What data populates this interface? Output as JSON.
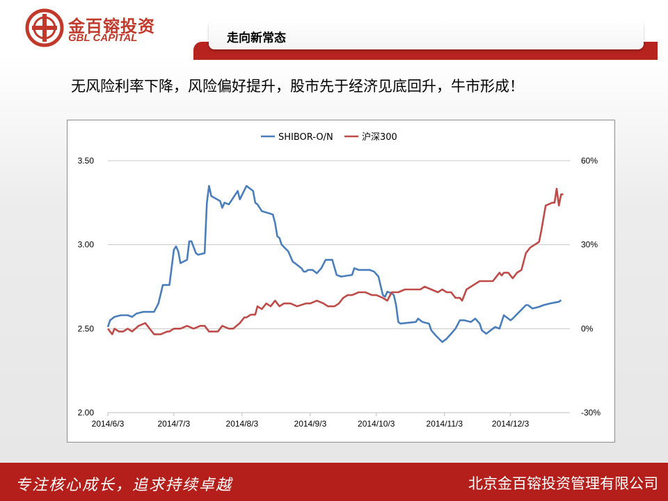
{
  "header": {
    "logo_cn": "金百镕投资",
    "logo_en": "GBL CAPITAL",
    "section_title": "走向新常态"
  },
  "headline": "无风险利率下降，风险偏好提升，股市先于经济见底回升，牛市形成！",
  "footer": {
    "slogan": "专注核心成长，追求持续卓越",
    "company": "北京金百镕投资管理有限公司"
  },
  "colors": {
    "brand_red": "#b51f1b",
    "series_blue": "#4a7ebb",
    "series_red": "#be4b48"
  },
  "chart_data": {
    "type": "line",
    "title": "",
    "legend_position": "top-center",
    "grid": "horizontal",
    "x_ticks": [
      "2014/6/3",
      "2014/7/3",
      "2014/8/3",
      "2014/9/3",
      "2014/10/3",
      "2014/11/3",
      "2014/12/3"
    ],
    "x_range": [
      "2014-06-03",
      "2014-12-30"
    ],
    "y_left": {
      "ylim": [
        2.0,
        3.5
      ],
      "ticks": [
        "3.50",
        "3.00",
        "2.50",
        "2.00"
      ],
      "tick_values": [
        3.5,
        3.0,
        2.5,
        2.0
      ]
    },
    "y_right": {
      "ylim": [
        -0.3,
        0.6
      ],
      "ticks": [
        "60%",
        "30%",
        "0%",
        "-30%"
      ],
      "tick_values": [
        0.6,
        0.3,
        0.0,
        -0.3
      ]
    },
    "series": [
      {
        "name": "SHIBOR-O/N",
        "axis": "left",
        "color": "#4a7ebb",
        "points": [
          [
            "2014-06-03",
            2.51
          ],
          [
            "2014-06-04",
            2.55
          ],
          [
            "2014-06-06",
            2.57
          ],
          [
            "2014-06-09",
            2.58
          ],
          [
            "2014-06-12",
            2.58
          ],
          [
            "2014-06-14",
            2.57
          ],
          [
            "2014-06-16",
            2.59
          ],
          [
            "2014-06-19",
            2.6
          ],
          [
            "2014-06-24",
            2.6
          ],
          [
            "2014-06-26",
            2.65
          ],
          [
            "2014-06-28",
            2.76
          ],
          [
            "2014-07-01",
            2.76
          ],
          [
            "2014-07-03",
            2.97
          ],
          [
            "2014-07-04",
            2.99
          ],
          [
            "2014-07-05",
            2.96
          ],
          [
            "2014-07-06",
            2.89
          ],
          [
            "2014-07-09",
            2.91
          ],
          [
            "2014-07-10",
            3.02
          ],
          [
            "2014-07-11",
            3.02
          ],
          [
            "2014-07-13",
            2.95
          ],
          [
            "2014-07-14",
            2.94
          ],
          [
            "2014-07-17",
            2.95
          ],
          [
            "2014-07-18",
            3.25
          ],
          [
            "2014-07-19",
            3.35
          ],
          [
            "2014-07-20",
            3.29
          ],
          [
            "2014-07-24",
            3.26
          ],
          [
            "2014-07-25",
            3.22
          ],
          [
            "2014-07-26",
            3.25
          ],
          [
            "2014-07-28",
            3.24
          ],
          [
            "2014-07-29",
            3.26
          ],
          [
            "2014-08-01",
            3.32
          ],
          [
            "2014-08-02",
            3.27
          ],
          [
            "2014-08-05",
            3.35
          ],
          [
            "2014-08-08",
            3.32
          ],
          [
            "2014-08-09",
            3.25
          ],
          [
            "2014-08-10",
            3.24
          ],
          [
            "2014-08-12",
            3.2
          ],
          [
            "2014-08-17",
            3.18
          ],
          [
            "2014-08-18",
            3.13
          ],
          [
            "2014-08-19",
            3.05
          ],
          [
            "2014-08-20",
            3.04
          ],
          [
            "2014-08-21",
            3.0
          ],
          [
            "2014-08-24",
            2.96
          ],
          [
            "2014-08-26",
            2.9
          ],
          [
            "2014-08-27",
            2.89
          ],
          [
            "2014-08-30",
            2.86
          ],
          [
            "2014-08-31",
            2.84
          ],
          [
            "2014-09-01",
            2.84
          ],
          [
            "2014-09-02",
            2.85
          ],
          [
            "2014-09-04",
            2.85
          ],
          [
            "2014-09-06",
            2.83
          ],
          [
            "2014-09-08",
            2.86
          ],
          [
            "2014-09-10",
            2.91
          ],
          [
            "2014-09-13",
            2.91
          ],
          [
            "2014-09-15",
            2.82
          ],
          [
            "2014-09-17",
            2.81
          ],
          [
            "2014-09-22",
            2.82
          ],
          [
            "2014-09-23",
            2.86
          ],
          [
            "2014-09-25",
            2.85
          ],
          [
            "2014-09-30",
            2.85
          ],
          [
            "2014-10-02",
            2.84
          ],
          [
            "2014-10-04",
            2.81
          ],
          [
            "2014-10-06",
            2.7
          ],
          [
            "2014-10-07",
            2.69
          ],
          [
            "2014-10-08",
            2.72
          ],
          [
            "2014-10-10",
            2.71
          ],
          [
            "2014-10-11",
            2.7
          ],
          [
            "2014-10-12",
            2.64
          ],
          [
            "2014-10-13",
            2.54
          ],
          [
            "2014-10-14",
            2.53
          ],
          [
            "2014-10-21",
            2.54
          ],
          [
            "2014-10-22",
            2.56
          ],
          [
            "2014-10-24",
            2.54
          ],
          [
            "2014-10-27",
            2.53
          ],
          [
            "2014-10-28",
            2.49
          ],
          [
            "2014-10-30",
            2.46
          ],
          [
            "2014-11-02",
            2.42
          ],
          [
            "2014-11-04",
            2.44
          ],
          [
            "2014-11-06",
            2.47
          ],
          [
            "2014-11-08",
            2.5
          ],
          [
            "2014-11-10",
            2.55
          ],
          [
            "2014-11-12",
            2.55
          ],
          [
            "2014-11-15",
            2.54
          ],
          [
            "2014-11-17",
            2.56
          ],
          [
            "2014-11-19",
            2.53
          ],
          [
            "2014-11-20",
            2.49
          ],
          [
            "2014-11-22",
            2.47
          ],
          [
            "2014-11-25",
            2.5
          ],
          [
            "2014-11-26",
            2.51
          ],
          [
            "2014-11-28",
            2.5
          ],
          [
            "2014-11-30",
            2.58
          ],
          [
            "2014-12-02",
            2.56
          ],
          [
            "2014-12-03",
            2.55
          ],
          [
            "2014-12-04",
            2.56
          ],
          [
            "2014-12-07",
            2.6
          ],
          [
            "2014-12-10",
            2.64
          ],
          [
            "2014-12-11",
            2.64
          ],
          [
            "2014-12-13",
            2.62
          ],
          [
            "2014-12-16",
            2.63
          ],
          [
            "2014-12-18",
            2.64
          ],
          [
            "2014-12-21",
            2.65
          ],
          [
            "2014-12-25",
            2.66
          ],
          [
            "2014-12-26",
            2.67
          ]
        ]
      },
      {
        "name": "沪深300",
        "axis": "right",
        "color": "#be4b48",
        "points": [
          [
            "2014-06-03",
            0.0
          ],
          [
            "2014-06-04",
            -0.01
          ],
          [
            "2014-06-05",
            -0.02
          ],
          [
            "2014-06-06",
            0.0
          ],
          [
            "2014-06-08",
            -0.01
          ],
          [
            "2014-06-10",
            -0.01
          ],
          [
            "2014-06-12",
            0.0
          ],
          [
            "2014-06-14",
            -0.01
          ],
          [
            "2014-06-17",
            0.01
          ],
          [
            "2014-06-20",
            0.02
          ],
          [
            "2014-06-22",
            0.0
          ],
          [
            "2014-06-24",
            -0.02
          ],
          [
            "2014-06-27",
            -0.02
          ],
          [
            "2014-06-30",
            -0.01
          ],
          [
            "2014-07-01",
            -0.01
          ],
          [
            "2014-07-03",
            0.0
          ],
          [
            "2014-07-06",
            0.0
          ],
          [
            "2014-07-09",
            0.01
          ],
          [
            "2014-07-12",
            0.0
          ],
          [
            "2014-07-15",
            0.01
          ],
          [
            "2014-07-17",
            0.01
          ],
          [
            "2014-07-19",
            -0.01
          ],
          [
            "2014-07-23",
            -0.01
          ],
          [
            "2014-07-25",
            0.01
          ],
          [
            "2014-07-28",
            0.0
          ],
          [
            "2014-07-30",
            0.0
          ],
          [
            "2014-08-02",
            0.02
          ],
          [
            "2014-08-04",
            0.04
          ],
          [
            "2014-08-05",
            0.04
          ],
          [
            "2014-08-07",
            0.05
          ],
          [
            "2014-08-09",
            0.05
          ],
          [
            "2014-08-10",
            0.08
          ],
          [
            "2014-08-12",
            0.07
          ],
          [
            "2014-08-14",
            0.09
          ],
          [
            "2014-08-16",
            0.08
          ],
          [
            "2014-08-18",
            0.1
          ],
          [
            "2014-08-20",
            0.08
          ],
          [
            "2014-08-22",
            0.09
          ],
          [
            "2014-08-25",
            0.09
          ],
          [
            "2014-08-28",
            0.08
          ],
          [
            "2014-09-01",
            0.09
          ],
          [
            "2014-09-03",
            0.09
          ],
          [
            "2014-09-06",
            0.1
          ],
          [
            "2014-09-09",
            0.09
          ],
          [
            "2014-09-11",
            0.08
          ],
          [
            "2014-09-14",
            0.08
          ],
          [
            "2014-09-16",
            0.09
          ],
          [
            "2014-09-18",
            0.11
          ],
          [
            "2014-09-20",
            0.12
          ],
          [
            "2014-09-22",
            0.12
          ],
          [
            "2014-09-25",
            0.13
          ],
          [
            "2014-09-28",
            0.13
          ],
          [
            "2014-10-01",
            0.12
          ],
          [
            "2014-10-03",
            0.12
          ],
          [
            "2014-10-06",
            0.11
          ],
          [
            "2014-10-08",
            0.1
          ],
          [
            "2014-10-10",
            0.13
          ],
          [
            "2014-10-13",
            0.13
          ],
          [
            "2014-10-16",
            0.14
          ],
          [
            "2014-10-20",
            0.14
          ],
          [
            "2014-10-23",
            0.14
          ],
          [
            "2014-10-25",
            0.15
          ],
          [
            "2014-10-28",
            0.14
          ],
          [
            "2014-10-31",
            0.13
          ],
          [
            "2014-11-02",
            0.14
          ],
          [
            "2014-11-04",
            0.13
          ],
          [
            "2014-11-06",
            0.13
          ],
          [
            "2014-11-08",
            0.11
          ],
          [
            "2014-11-10",
            0.11
          ],
          [
            "2014-11-11",
            0.1
          ],
          [
            "2014-11-13",
            0.14
          ],
          [
            "2014-11-15",
            0.15
          ],
          [
            "2014-11-17",
            0.16
          ],
          [
            "2014-11-19",
            0.17
          ],
          [
            "2014-11-22",
            0.17
          ],
          [
            "2014-11-25",
            0.17
          ],
          [
            "2014-11-26",
            0.18
          ],
          [
            "2014-11-28",
            0.2
          ],
          [
            "2014-11-29",
            0.19
          ],
          [
            "2014-11-30",
            0.2
          ],
          [
            "2014-12-02",
            0.2
          ],
          [
            "2014-12-04",
            0.18
          ],
          [
            "2014-12-06",
            0.2
          ],
          [
            "2014-12-08",
            0.21
          ],
          [
            "2014-12-09",
            0.24
          ],
          [
            "2014-12-10",
            0.27
          ],
          [
            "2014-12-12",
            0.29
          ],
          [
            "2014-12-14",
            0.3
          ],
          [
            "2014-12-16",
            0.31
          ],
          [
            "2014-12-17",
            0.35
          ],
          [
            "2014-12-19",
            0.44
          ],
          [
            "2014-12-22",
            0.45
          ],
          [
            "2014-12-23",
            0.45
          ],
          [
            "2014-12-24",
            0.5
          ],
          [
            "2014-12-25",
            0.44
          ],
          [
            "2014-12-26",
            0.48
          ],
          [
            "2014-12-27",
            0.48
          ]
        ]
      }
    ]
  }
}
